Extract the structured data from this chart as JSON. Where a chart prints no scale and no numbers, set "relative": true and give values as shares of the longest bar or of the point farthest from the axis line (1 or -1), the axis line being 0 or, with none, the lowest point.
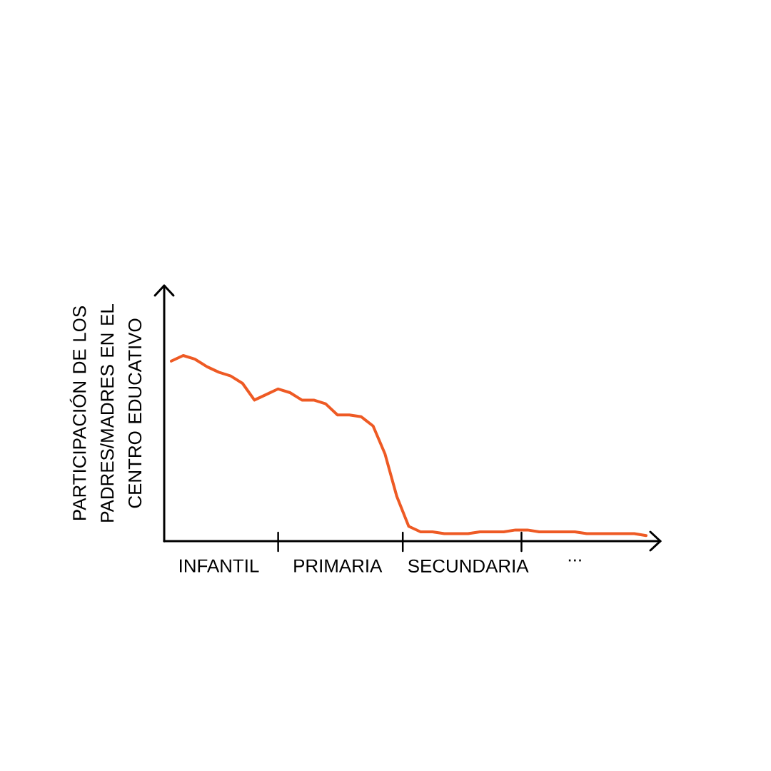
{
  "chart_data": {
    "type": "line",
    "ylabel": "PARTICIPACIÓN DE LOS PADRES/MADRES EN EL CENTRO EDUCATIVO",
    "relative": true,
    "color": "#ee5a24",
    "categories": [
      null,
      null,
      null,
      null,
      "INFANTIL",
      null,
      null,
      null,
      null,
      null,
      null,
      null,
      null,
      null,
      "PRIMARIA",
      null,
      null,
      null,
      null,
      null,
      null,
      null,
      null,
      null,
      null,
      "SECUNDARIA",
      null,
      null,
      null,
      null,
      null,
      null,
      null,
      null,
      "...",
      null,
      null,
      null,
      null,
      null,
      null
    ],
    "values": [
      0.97,
      1,
      0.98,
      0.94,
      0.91,
      0.89,
      0.85,
      0.76,
      0.79,
      0.82,
      0.8,
      0.76,
      0.76,
      0.74,
      0.68,
      0.68,
      0.67,
      0.62,
      0.47,
      0.24,
      0.08,
      0.05,
      0.05,
      0.04,
      0.04,
      0.04,
      0.05,
      0.05,
      0.05,
      0.06,
      0.06,
      0.05,
      0.05,
      0.05,
      0.05,
      0.04,
      0.04,
      0.04,
      0.04,
      0.04,
      0.03
    ]
  }
}
